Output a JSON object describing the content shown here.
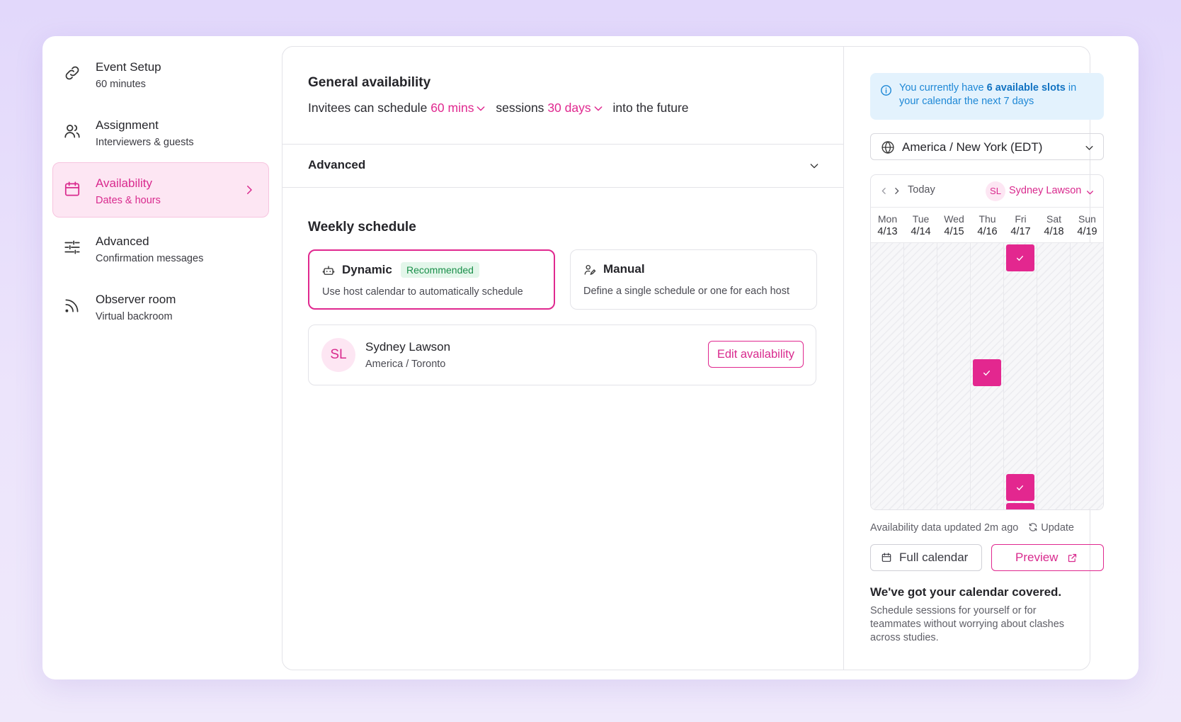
{
  "sidebar": {
    "items": [
      {
        "title": "Event Setup",
        "subtitle": "60 minutes",
        "icon": "link-icon"
      },
      {
        "title": "Assignment",
        "subtitle": "Interviewers & guests",
        "icon": "users-icon"
      },
      {
        "title": "Availability",
        "subtitle": "Dates & hours",
        "icon": "calendar-icon",
        "active": true
      },
      {
        "title": "Advanced",
        "subtitle": "Confirmation messages",
        "icon": "sliders-icon"
      },
      {
        "title": "Observer room",
        "subtitle": "Virtual backroom",
        "icon": "rss-icon"
      }
    ]
  },
  "general": {
    "title": "General availability",
    "sentence_prefix": "Invitees can schedule",
    "duration": "60 mins",
    "sentence_mid": "sessions",
    "range": "30 days",
    "sentence_suffix": "into the future"
  },
  "advanced_section": {
    "label": "Advanced"
  },
  "weekly": {
    "title": "Weekly schedule",
    "options": [
      {
        "name": "Dynamic",
        "badge": "Recommended",
        "description": "Use host calendar to automatically schedule",
        "selected": true
      },
      {
        "name": "Manual",
        "description": "Define a single schedule or one for each host",
        "selected": false
      }
    ],
    "host": {
      "initials": "SL",
      "name": "Sydney Lawson",
      "timezone": "America / Toronto",
      "edit_label": "Edit availability"
    }
  },
  "right_panel": {
    "info": {
      "prefix": "You currently have",
      "highlight": "6 available slots",
      "suffix": "in your calendar the next 7 days"
    },
    "timezone": "America / New York (EDT)",
    "calendar": {
      "today_label": "Today",
      "host_initials": "SL",
      "host_name": "Sydney Lawson",
      "days": [
        {
          "name": "Mon",
          "date": "4/13"
        },
        {
          "name": "Tue",
          "date": "4/14"
        },
        {
          "name": "Wed",
          "date": "4/15"
        },
        {
          "name": "Thu",
          "date": "4/16"
        },
        {
          "name": "Fri",
          "date": "4/17"
        },
        {
          "name": "Sat",
          "date": "4/18"
        },
        {
          "name": "Sun",
          "date": "4/19"
        }
      ]
    },
    "updated_text": "Availability data updated 2m ago",
    "update_label": "Update",
    "full_calendar_label": "Full calendar",
    "preview_label": "Preview",
    "covered_title": "We've got your calendar covered.",
    "covered_text": "Schedule sessions for yourself or for teammates without worrying about clashes across studies."
  },
  "colors": {
    "accent": "#e0288f",
    "accent_bg": "#fde6f3",
    "info_bg": "#e3f2fd",
    "info_text": "#1e88d6",
    "badge_green": "#1a8f4a"
  }
}
